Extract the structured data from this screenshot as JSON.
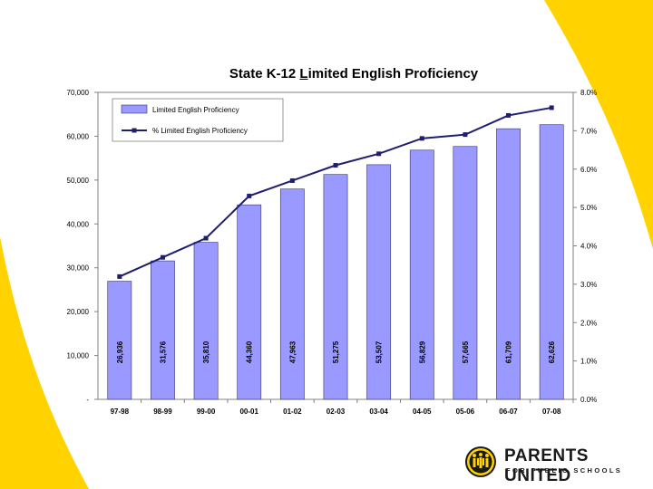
{
  "colors": {
    "accent": "#FFD200",
    "bar": "#9999FF",
    "line": "#1F1F70"
  },
  "chart_data": {
    "type": "bar",
    "title": "State K-12 Limited English Proficiency",
    "title_parts": {
      "pre": "State K-12 ",
      "underlined": "L",
      "post": "imited English Proficiency"
    },
    "categories": [
      "97-98",
      "98-99",
      "99-00",
      "00-01",
      "01-02",
      "02-03",
      "03-04",
      "04-05",
      "05-06",
      "06-07",
      "07-08"
    ],
    "series": [
      {
        "name": "Limited English Proficiency",
        "kind": "bar",
        "axis": "left",
        "values": [
          26936,
          31576,
          35810,
          44360,
          47963,
          51275,
          53507,
          56829,
          57665,
          61709,
          62626
        ],
        "labels": [
          "26,936",
          "31,576",
          "35,810",
          "44,360",
          "47,963",
          "51,275",
          "53,507",
          "56,829",
          "57,665",
          "61,709",
          "62,626"
        ]
      },
      {
        "name": "% Limited English Proficiency",
        "kind": "line",
        "axis": "right",
        "values": [
          3.2,
          3.7,
          4.2,
          5.3,
          5.7,
          6.1,
          6.4,
          6.8,
          6.9,
          7.4,
          7.6
        ]
      }
    ],
    "y_left": {
      "min": 0,
      "max": 70000,
      "ticks": [
        "-",
        "10,000",
        "20,000",
        "30,000",
        "40,000",
        "50,000",
        "60,000",
        "70,000"
      ]
    },
    "y_right": {
      "min": 0,
      "max": 8,
      "ticks": [
        "0.0%",
        "1.0%",
        "2.0%",
        "3.0%",
        "4.0%",
        "5.0%",
        "6.0%",
        "7.0%",
        "8.0%"
      ]
    },
    "legend": {
      "placement": "top-left"
    },
    "grid": false
  },
  "logo": {
    "name": "PARENTS UNITED",
    "tagline": "FOR PUBLIC SCHOOLS"
  }
}
